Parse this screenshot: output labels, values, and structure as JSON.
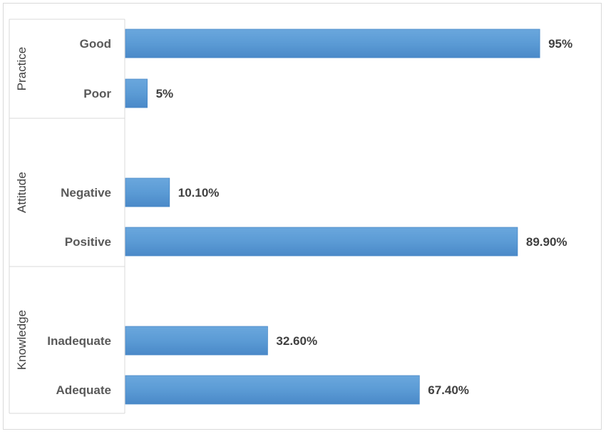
{
  "chart_data": {
    "type": "bar",
    "orientation": "horizontal",
    "groups": [
      {
        "name": "Practice",
        "categories": [
          {
            "label": "Good",
            "value": 95,
            "value_label": "95%"
          },
          {
            "label": "Poor",
            "value": 5,
            "value_label": "5%"
          }
        ]
      },
      {
        "name": "Attitude",
        "categories": [
          {
            "label": "Negative",
            "value": 10.1,
            "value_label": "10.10%"
          },
          {
            "label": "Positive",
            "value": 89.9,
            "value_label": "89.90%"
          }
        ]
      },
      {
        "name": "Knowledge",
        "categories": [
          {
            "label": "Inadequate",
            "value": 32.6,
            "value_label": "32.60%"
          },
          {
            "label": "Adequate",
            "value": 67.4,
            "value_label": "67.40%"
          }
        ]
      }
    ],
    "xlim": [
      0,
      100
    ],
    "grid": false,
    "legend": "none",
    "colors": {
      "bar": "#5b9bd5",
      "bar_dark": "#4a89c8",
      "axis_line": "#d9d9d9",
      "text": "#595959"
    }
  }
}
